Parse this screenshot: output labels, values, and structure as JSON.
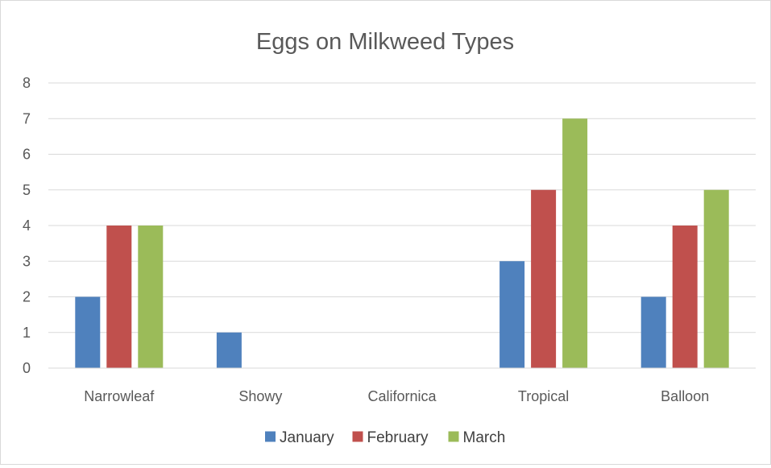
{
  "chart_data": {
    "type": "bar",
    "title": "Eggs on Milkweed Types",
    "xlabel": "",
    "ylabel": "",
    "categories": [
      "Narrowleaf",
      "Showy",
      "Californica",
      "Tropical",
      "Balloon"
    ],
    "series": [
      {
        "name": "January",
        "color": "#4f81bd",
        "values": [
          2,
          1,
          0,
          3,
          2
        ]
      },
      {
        "name": "February",
        "color": "#c0504d",
        "values": [
          4,
          0,
          0,
          5,
          4
        ]
      },
      {
        "name": "March",
        "color": "#9bbb59",
        "values": [
          4,
          0,
          0,
          7,
          5
        ]
      }
    ],
    "ylim": [
      0,
      8
    ],
    "yticks": [
      0,
      1,
      2,
      3,
      4,
      5,
      6,
      7,
      8
    ],
    "grid": true,
    "legend_position": "bottom"
  }
}
